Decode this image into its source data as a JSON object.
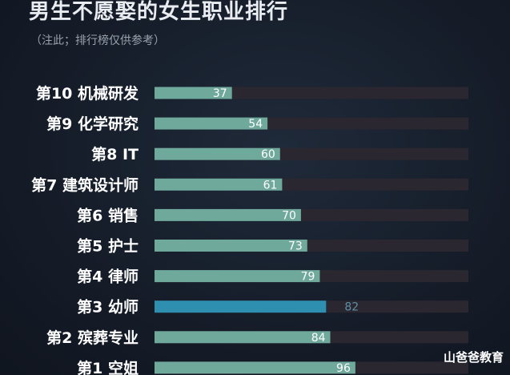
{
  "title": "男生不愿娶的女生职业排行",
  "subtitle": "（注此；排行榜仅供参考）",
  "watermark": "山爸爸教育",
  "colors": {
    "bar": "#6fa99c",
    "bar_highlight": "#2f8fb0",
    "track": "#2a2730",
    "label_on_bar": "#ffffff",
    "label_highlight": "#5d8fa8",
    "category_text": "#ffffff"
  },
  "chart_data": {
    "type": "bar",
    "orientation": "horizontal",
    "title": "男生不愿娶的女生职业排行",
    "subtitle": "（注此；排行榜仅供参考）",
    "categories": [
      "第10 机械研发",
      "第9 化学研究",
      "第8 IT",
      "第7 建筑设计师",
      "第6 销售",
      "第5 护士",
      "第4 律师",
      "第3 幼师",
      "第2 殡葬专业",
      "第1 空姐"
    ],
    "values": [
      37,
      54,
      60,
      61,
      70,
      73,
      79,
      82,
      84,
      96
    ],
    "highlight_index": 7,
    "xlim": [
      0,
      100
    ],
    "grid": false,
    "legend": "none"
  }
}
